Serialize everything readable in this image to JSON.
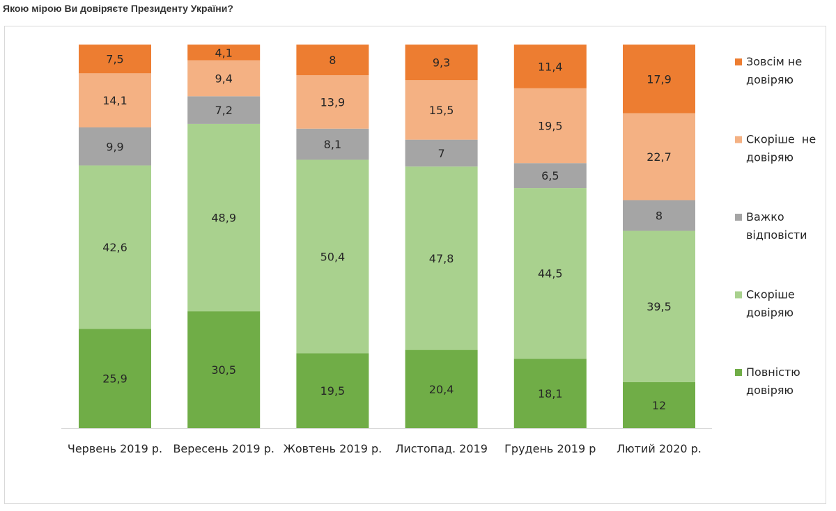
{
  "title": "Якою мірою Ви довіряєте Президенту України?",
  "chart_data": {
    "type": "bar",
    "stacked": true,
    "percent_stacked": true,
    "categories": [
      "Червень 2019 р.",
      "Вересень 2019 р.",
      "Жовтень 2019 р.",
      "Листопад. 2019",
      "Грудень 2019 р",
      "Лютий 2020 р."
    ],
    "series": [
      {
        "key": "full_trust",
        "name": "Повністю довіряю",
        "legend_lines": [
          "Повністю",
          "довіряю"
        ],
        "color": "#70ad47",
        "values": [
          25.9,
          30.5,
          19.5,
          20.4,
          18.1,
          12
        ],
        "labels": [
          "25,9",
          "30,5",
          "19,5",
          "20,4",
          "18,1",
          "12"
        ]
      },
      {
        "key": "rather_trust",
        "name": "Скоріше довіряю",
        "legend_lines": [
          "Скоріше",
          "довіряю"
        ],
        "color": "#a9d18e",
        "values": [
          42.6,
          48.9,
          50.4,
          47.8,
          44.5,
          39.5
        ],
        "labels": [
          "42,6",
          "48,9",
          "50,4",
          "47,8",
          "44,5",
          "39,5"
        ]
      },
      {
        "key": "hard_to_say",
        "name": "Важко відповісти",
        "legend_lines": [
          "Важко",
          "відповісти"
        ],
        "color": "#a5a5a5",
        "values": [
          9.9,
          7.2,
          8.1,
          7,
          6.5,
          8
        ],
        "labels": [
          "9,9",
          "7,2",
          "8,1",
          "7",
          "6,5",
          "8"
        ]
      },
      {
        "key": "rather_distrust",
        "name": "Скоріше не довіряю",
        "legend_lines": [
          "Скоріше  не",
          "довіряю"
        ],
        "color": "#f4b183",
        "values": [
          14.1,
          9.4,
          13.9,
          15.5,
          19.5,
          22.7
        ],
        "labels": [
          "14,1",
          "9,4",
          "13,9",
          "15,5",
          "19,5",
          "22,7"
        ]
      },
      {
        "key": "full_distrust",
        "name": "Зовсім не довіряю",
        "legend_lines": [
          "Зовсім не",
          "довіряю"
        ],
        "color": "#ed7d31",
        "values": [
          7.5,
          4.1,
          8,
          9.3,
          11.4,
          17.9
        ],
        "labels": [
          "7,5",
          "4,1",
          "8",
          "9,3",
          "11,4",
          "17,9"
        ]
      }
    ],
    "legend_order": [
      "full_distrust",
      "rather_distrust",
      "hard_to_say",
      "rather_trust",
      "full_trust"
    ],
    "legend_position": "right",
    "grid": false,
    "xlabel": "",
    "ylabel": ""
  }
}
